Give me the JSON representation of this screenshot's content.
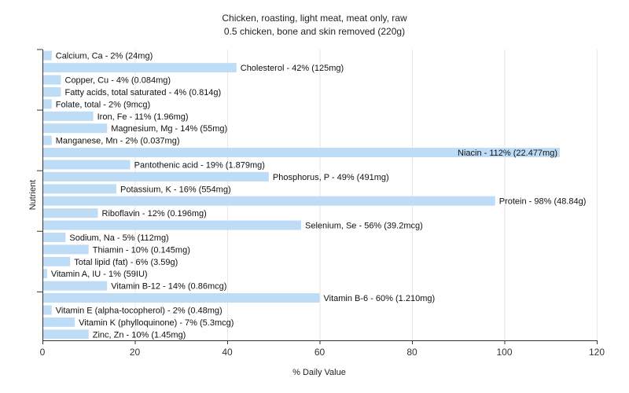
{
  "chart_data": {
    "type": "bar",
    "orientation": "horizontal",
    "title": "Chicken, roasting, light meat, meat only, raw",
    "subtitle": "0.5 chicken, bone and skin removed (220g)",
    "xlabel": "% Daily Value",
    "ylabel": "Nutrient",
    "xlim": [
      0,
      120
    ],
    "xticks": [
      0,
      20,
      40,
      60,
      80,
      100,
      120
    ],
    "grid": true,
    "bar_color": "#bfdcf7",
    "categories": [
      "Calcium, Ca",
      "Cholesterol",
      "Copper, Cu",
      "Fatty acids, total saturated",
      "Folate, total",
      "Iron, Fe",
      "Magnesium, Mg",
      "Manganese, Mn",
      "Niacin",
      "Pantothenic acid",
      "Phosphorus, P",
      "Potassium, K",
      "Protein",
      "Riboflavin",
      "Selenium, Se",
      "Sodium, Na",
      "Thiamin",
      "Total lipid (fat)",
      "Vitamin A, IU",
      "Vitamin B-12",
      "Vitamin B-6",
      "Vitamin E (alpha-tocopherol)",
      "Vitamin K (phylloquinone)",
      "Zinc, Zn"
    ],
    "values": [
      2,
      42,
      4,
      4,
      2,
      11,
      14,
      2,
      112,
      19,
      49,
      16,
      98,
      12,
      56,
      5,
      10,
      6,
      1,
      14,
      60,
      2,
      7,
      10
    ],
    "labels": [
      "Calcium, Ca - 2% (24mg)",
      "Cholesterol - 42% (125mg)",
      "Copper, Cu - 4% (0.084mg)",
      "Fatty acids, total saturated - 4% (0.814g)",
      "Folate, total - 2% (9mcg)",
      "Iron, Fe - 11% (1.96mg)",
      "Magnesium, Mg - 14% (55mg)",
      "Manganese, Mn - 2% (0.037mg)",
      "Niacin - 112% (22.477mg)",
      "Pantothenic acid - 19% (1.879mg)",
      "Phosphorus, P - 49% (491mg)",
      "Potassium, K - 16% (554mg)",
      "Protein - 98% (48.84g)",
      "Riboflavin - 12% (0.196mg)",
      "Selenium, Se - 56% (39.2mcg)",
      "Sodium, Na - 5% (112mg)",
      "Thiamin - 10% (0.145mg)",
      "Total lipid (fat) - 6% (3.59g)",
      "Vitamin A, IU - 1% (59IU)",
      "Vitamin B-12 - 14% (0.86mcg)",
      "Vitamin B-6 - 60% (1.210mg)",
      "Vitamin E (alpha-tocopherol) - 2% (0.48mg)",
      "Vitamin K (phylloquinone) - 7% (5.3mcg)",
      "Zinc, Zn - 10% (1.45mg)"
    ]
  }
}
